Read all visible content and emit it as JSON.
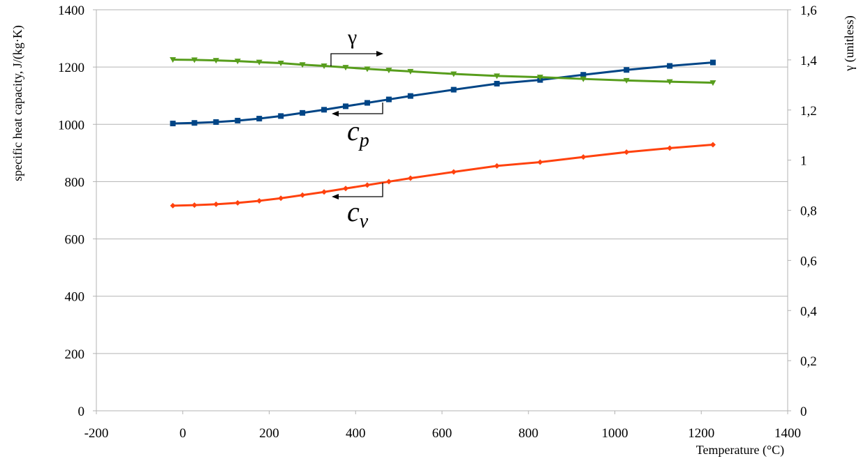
{
  "chart_data": {
    "type": "line",
    "title": "",
    "xlabel": "Temperature (°C)",
    "ylabel": "specific heat capacity, J/(kg·K)",
    "y2label": "γ (unitless)",
    "xlim": [
      -200,
      1400
    ],
    "ylim": [
      0,
      1400
    ],
    "y2lim": [
      0,
      1.6
    ],
    "grid": true,
    "x_ticks": [
      "-200",
      "0",
      "200",
      "400",
      "600",
      "800",
      "1000",
      "1200",
      "1400"
    ],
    "y_ticks": [
      "0",
      "200",
      "400",
      "600",
      "800",
      "1000",
      "1200",
      "1400"
    ],
    "y2_ticks": [
      "0",
      "0,2",
      "0,4",
      "0,6",
      "0,8",
      "1",
      "1,2",
      "1,4",
      "1,6"
    ],
    "x": [
      -23,
      27,
      77,
      127,
      177,
      227,
      277,
      327,
      377,
      427,
      477,
      527,
      627,
      727,
      827,
      927,
      1027,
      1127,
      1227
    ],
    "series": [
      {
        "name": "c_p",
        "axis": "left",
        "marker": "square",
        "color": "#004586",
        "values": [
          1003,
          1005,
          1008,
          1013,
          1020,
          1029,
          1040,
          1051,
          1063,
          1075,
          1087,
          1099,
          1121,
          1142,
          1155,
          1173,
          1190,
          1204,
          1216
        ]
      },
      {
        "name": "c_v",
        "axis": "left",
        "marker": "diamond",
        "color": "#ff420e",
        "values": [
          716,
          718,
          721,
          726,
          733,
          742,
          753,
          764,
          776,
          788,
          800,
          812,
          834,
          855,
          868,
          886,
          903,
          917,
          929
        ]
      },
      {
        "name": "γ",
        "axis": "right",
        "marker": "triangle-down",
        "color": "#579d1c",
        "values": [
          1.401,
          1.4,
          1.398,
          1.395,
          1.391,
          1.387,
          1.381,
          1.376,
          1.37,
          1.364,
          1.359,
          1.354,
          1.344,
          1.336,
          1.331,
          1.324,
          1.318,
          1.313,
          1.309
        ]
      }
    ],
    "annotations": {
      "gamma": {
        "text": "γ",
        "arrow": "right"
      },
      "cp": {
        "base": "c",
        "sub": "p",
        "arrow": "left"
      },
      "cv": {
        "base": "c",
        "sub": "v",
        "arrow": "left"
      }
    }
  }
}
